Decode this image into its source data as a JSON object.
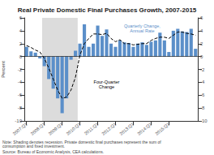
{
  "chart_data": {
    "type": "bar",
    "title": "Real Private Domestic Final Purchases Growth, 2007-2015",
    "ylabel": "Percent",
    "categories": [
      "2007:Q1",
      null,
      null,
      null,
      "2008:Q1",
      null,
      null,
      null,
      "2009:Q1",
      null,
      null,
      null,
      "2010:Q1",
      null,
      null,
      null,
      "2011:Q1",
      null,
      null,
      null,
      "2012:Q1",
      null,
      null,
      null,
      "2013:Q1",
      null,
      null,
      null,
      "2014:Q1",
      null,
      null,
      null,
      "2015:Q1",
      null,
      null,
      null,
      null,
      null,
      null
    ],
    "series": [
      {
        "type": "bar",
        "color": "#5b8fc9",
        "values": [
          1.5,
          0.8,
          0.6,
          -0.3,
          -1.5,
          -3.5,
          -5.0,
          -6.5,
          -8.8,
          -6.5,
          -0.5,
          0.9,
          2.0,
          5.0,
          1.5,
          2.0,
          4.8,
          3.2,
          4.2,
          2.0,
          1.5,
          2.5,
          2.2,
          2.1,
          1.5,
          2.0,
          2.2,
          1.8,
          2.3,
          2.5,
          3.7,
          2.5,
          0.7,
          4.0,
          4.3,
          3.9,
          3.8,
          4.3,
          1.2
        ]
      },
      {
        "type": "line",
        "color": "#000000",
        "line_style": "dashed",
        "values": [
          1.7,
          1.4,
          1.0,
          0.7,
          -0.3,
          -1.8,
          -3.5,
          -5.2,
          -6.5,
          -6.3,
          -5.2,
          -3.2,
          0.2,
          2.0,
          2.8,
          3.5,
          3.5,
          3.4,
          3.6,
          2.8,
          2.3,
          2.6,
          2.0,
          2.0,
          1.8,
          1.9,
          2.0,
          2.0,
          2.5,
          2.8,
          3.0,
          3.0,
          2.8,
          3.3,
          3.8,
          3.8,
          3.6,
          3.5,
          3.3
        ]
      }
    ],
    "ylim": [
      -10,
      6
    ],
    "yticks": [
      -10,
      -8,
      -6,
      -4,
      -2,
      0,
      2,
      4,
      6
    ],
    "y2lim": [
      -10,
      6
    ],
    "y2ticks": [
      -10,
      -8,
      -6,
      -4,
      -2,
      0,
      2,
      4,
      6
    ],
    "grid": false,
    "recession": {
      "start": 4,
      "end": 11,
      "color": "#dcdcdc"
    },
    "annotations": [
      {
        "text": "Quarterly Change,\nAnnual Rate",
        "color": "#5b8fc9"
      },
      {
        "text": "Four-Quarter\nChange",
        "color": "#000000"
      }
    ],
    "note": "Note: Shading denotes recession. Private domestic final purchases represent the sum of consumption and fixed investment.",
    "source": "Source: Bureau of Economic Analysis, CEA calculations."
  }
}
